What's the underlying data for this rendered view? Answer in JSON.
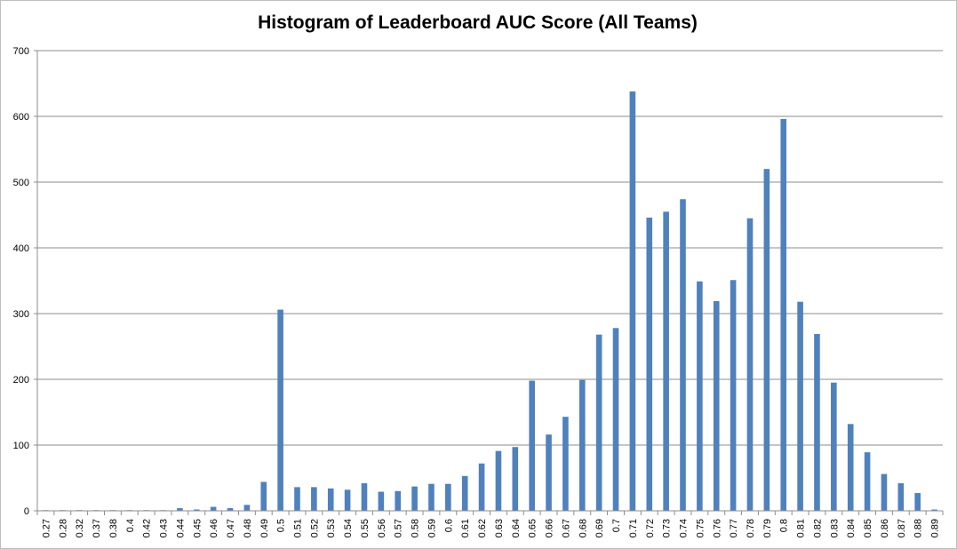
{
  "chart_data": {
    "type": "bar",
    "title": "Histogram of Leaderboard AUC Score (All Teams)",
    "xlabel": "",
    "ylabel": "",
    "ylim": [
      0,
      700
    ],
    "yticks": [
      0,
      100,
      200,
      300,
      400,
      500,
      600,
      700
    ],
    "grid": true,
    "legend": "none",
    "bar_color": "#4f81bd",
    "categories": [
      "0.27",
      "0.28",
      "0.32",
      "0.37",
      "0.38",
      "0.4",
      "0.42",
      "0.43",
      "0.44",
      "0.45",
      "0.46",
      "0.47",
      "0.48",
      "0.49",
      "0.5",
      "0.51",
      "0.52",
      "0.53",
      "0.54",
      "0.55",
      "0.56",
      "0.57",
      "0.58",
      "0.59",
      "0.6",
      "0.61",
      "0.62",
      "0.63",
      "0.64",
      "0.65",
      "0.66",
      "0.67",
      "0.68",
      "0.69",
      "0.7",
      "0.71",
      "0.72",
      "0.73",
      "0.74",
      "0.75",
      "0.76",
      "0.77",
      "0.78",
      "0.79",
      "0.8",
      "0.81",
      "0.82",
      "0.83",
      "0.84",
      "0.85",
      "0.86",
      "0.87",
      "0.88",
      "0.89"
    ],
    "values": [
      1,
      1,
      1,
      1,
      1,
      1,
      1,
      1,
      4,
      2,
      6,
      4,
      9,
      44,
      306,
      36,
      36,
      34,
      32,
      42,
      29,
      30,
      37,
      41,
      41,
      53,
      72,
      91,
      97,
      198,
      116,
      143,
      199,
      268,
      278,
      638,
      446,
      455,
      474,
      349,
      319,
      351,
      445,
      520,
      596,
      318,
      269,
      195,
      132,
      89,
      56,
      42,
      27,
      2
    ]
  }
}
